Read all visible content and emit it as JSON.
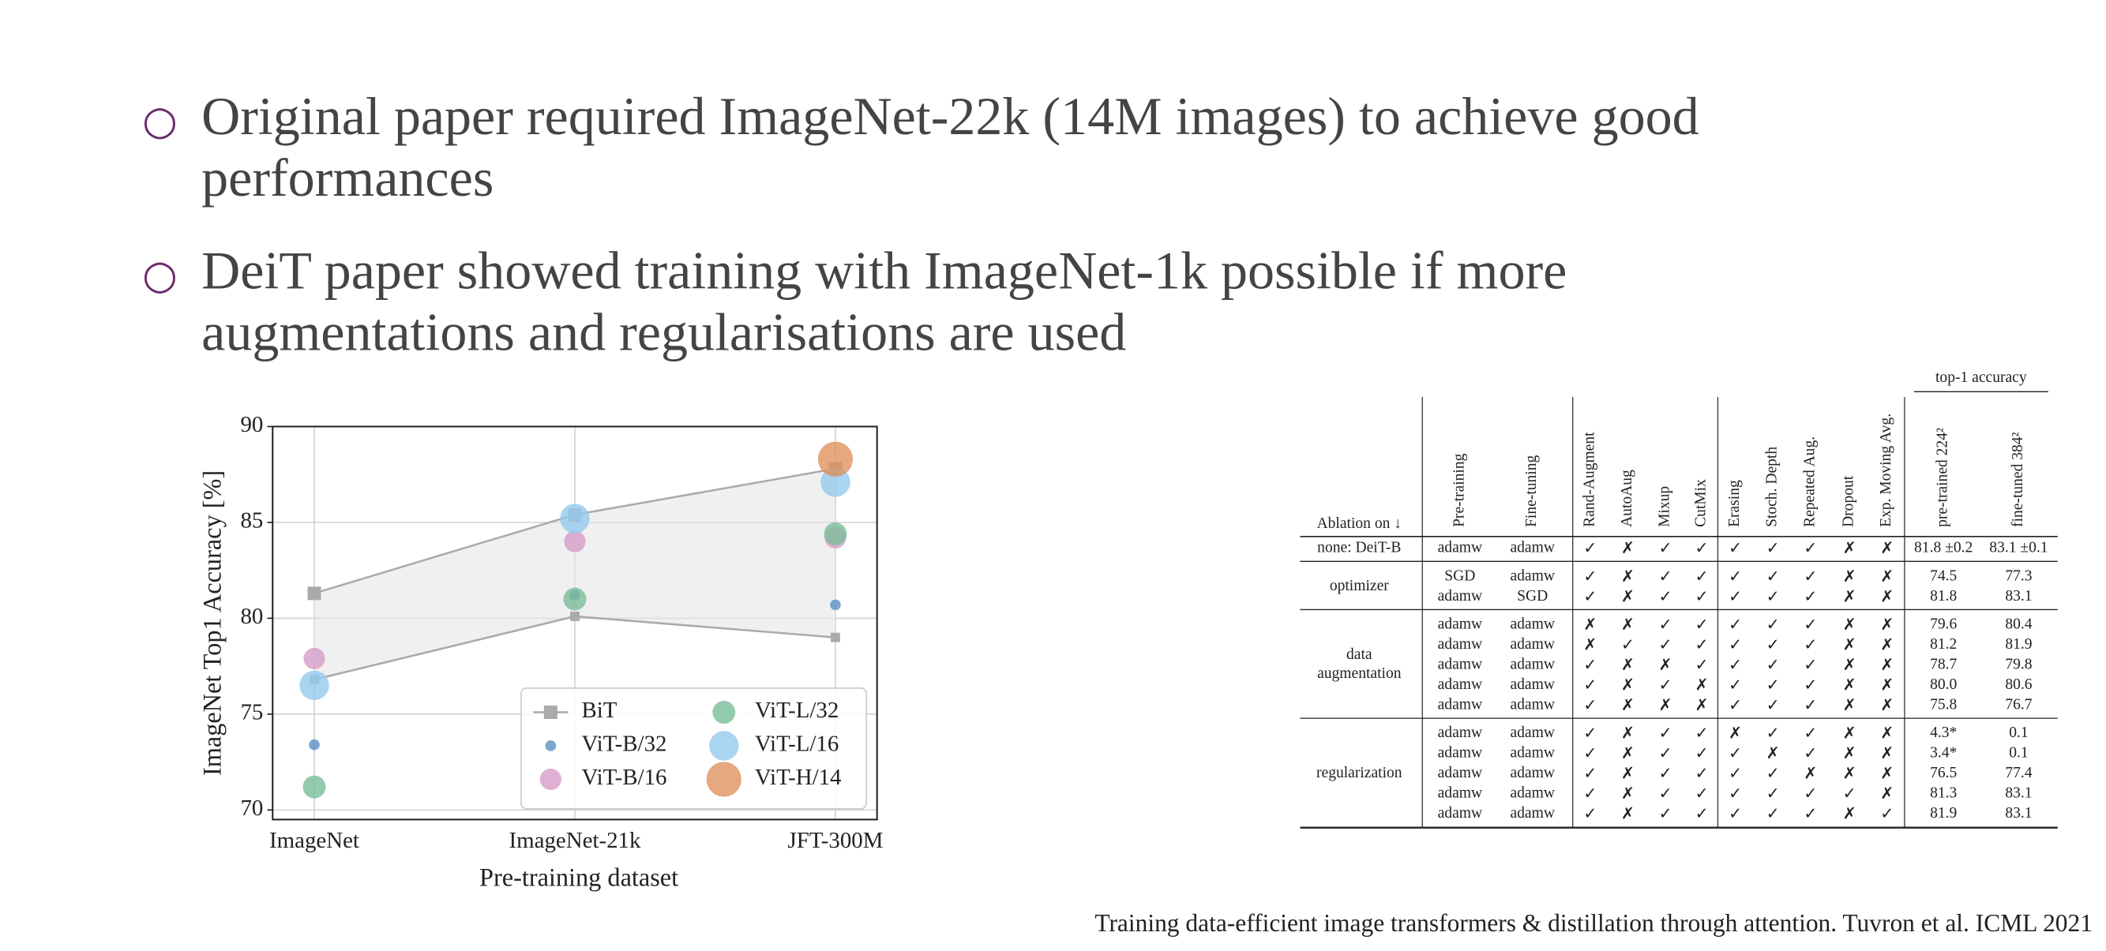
{
  "bullets": [
    [
      "Original paper required ImageNet-22k (14M images) to achieve good",
      "performances"
    ],
    [
      "DeiT paper showed training with ImageNet-1k possible if more",
      "augmentations and regularisations are used"
    ]
  ],
  "chart_data": {
    "type": "scatter",
    "x_label": "Pre-training dataset",
    "y_label": "ImageNet Top1 Accuracy [%]",
    "categories": [
      "ImageNet",
      "ImageNet-21k",
      "JFT-300M"
    ],
    "ylim": [
      69.5,
      90
    ],
    "yticks": [
      70,
      75,
      80,
      85,
      90
    ],
    "grid": true,
    "series": [
      {
        "name": "BiT",
        "color": "#aaaaaa",
        "values": [
          81.3,
          85.4,
          87.8
        ],
        "low": [
          76.8,
          80.1,
          79.0
        ]
      },
      {
        "name": "ViT-B/32",
        "color": "#5b8ec4",
        "values": [
          73.4,
          81.2,
          80.7
        ]
      },
      {
        "name": "ViT-B/16",
        "color": "#d69ec9",
        "values": [
          77.9,
          84.0,
          84.2
        ]
      },
      {
        "name": "ViT-L/32",
        "color": "#79bd9a",
        "values": [
          71.2,
          81.0,
          84.4
        ]
      },
      {
        "name": "ViT-L/16",
        "color": "#94c9ef",
        "values": [
          76.5,
          85.2,
          87.1
        ]
      },
      {
        "name": "ViT-H/14",
        "color": "#e0925e",
        "values": [
          null,
          null,
          88.3
        ]
      }
    ]
  },
  "table": {
    "group_header": "top-1 accuracy",
    "columns": [
      "Ablation on ↓",
      "Pre-training",
      "Fine-tuning",
      "Rand-Augment",
      "AutoAug",
      "Mixup",
      "CutMix",
      "Erasing",
      "Stoch. Depth",
      "Repeated Aug.",
      "Dropout",
      "Exp. Moving Avg.",
      "pre-trained 224²",
      "fine-tuned 384²"
    ],
    "groups": [
      {
        "label": "none: DeiT-B",
        "rows": [
          [
            "adamw",
            "adamw",
            "✓",
            "✗",
            "✓",
            "✓",
            "✓",
            "✓",
            "✓",
            "✗",
            "✗",
            "81.8 ±0.2",
            "83.1 ±0.1"
          ]
        ]
      },
      {
        "label": "optimizer",
        "rows": [
          [
            "SGD",
            "adamw",
            "✓",
            "✗",
            "✓",
            "✓",
            "✓",
            "✓",
            "✓",
            "✗",
            "✗",
            "74.5",
            "77.3"
          ],
          [
            "adamw",
            "SGD",
            "✓",
            "✗",
            "✓",
            "✓",
            "✓",
            "✓",
            "✓",
            "✗",
            "✗",
            "81.8",
            "83.1"
          ]
        ]
      },
      {
        "label": "data augmentation",
        "rows": [
          [
            "adamw",
            "adamw",
            "✗",
            "✗",
            "✓",
            "✓",
            "✓",
            "✓",
            "✓",
            "✗",
            "✗",
            "79.6",
            "80.4"
          ],
          [
            "adamw",
            "adamw",
            "✗",
            "✓",
            "✓",
            "✓",
            "✓",
            "✓",
            "✓",
            "✗",
            "✗",
            "81.2",
            "81.9"
          ],
          [
            "adamw",
            "adamw",
            "✓",
            "✗",
            "✗",
            "✓",
            "✓",
            "✓",
            "✓",
            "✗",
            "✗",
            "78.7",
            "79.8"
          ],
          [
            "adamw",
            "adamw",
            "✓",
            "✗",
            "✓",
            "✗",
            "✓",
            "✓",
            "✓",
            "✗",
            "✗",
            "80.0",
            "80.6"
          ],
          [
            "adamw",
            "adamw",
            "✓",
            "✗",
            "✗",
            "✗",
            "✓",
            "✓",
            "✓",
            "✗",
            "✗",
            "75.8",
            "76.7"
          ]
        ]
      },
      {
        "label": "regularization",
        "rows": [
          [
            "adamw",
            "adamw",
            "✓",
            "✗",
            "✓",
            "✓",
            "✗",
            "✓",
            "✓",
            "✗",
            "✗",
            "4.3*",
            "0.1"
          ],
          [
            "adamw",
            "adamw",
            "✓",
            "✗",
            "✓",
            "✓",
            "✓",
            "✗",
            "✓",
            "✗",
            "✗",
            "3.4*",
            "0.1"
          ],
          [
            "adamw",
            "adamw",
            "✓",
            "✗",
            "✓",
            "✓",
            "✓",
            "✓",
            "✗",
            "✗",
            "✗",
            "76.5",
            "77.4"
          ],
          [
            "adamw",
            "adamw",
            "✓",
            "✗",
            "✓",
            "✓",
            "✓",
            "✓",
            "✓",
            "✓",
            "✗",
            "81.3",
            "83.1"
          ],
          [
            "adamw",
            "adamw",
            "✓",
            "✗",
            "✓",
            "✓",
            "✓",
            "✓",
            "✓",
            "✗",
            "✓",
            "81.9",
            "83.1"
          ]
        ]
      }
    ]
  },
  "citation": "Training data-efficient image transformers & distillation through attention. Tuvron et al. ICML 2021"
}
